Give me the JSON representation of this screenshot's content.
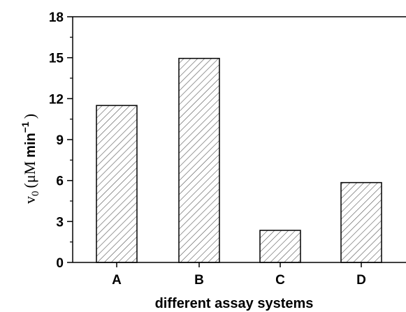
{
  "chart_data": {
    "type": "bar",
    "categories": [
      "A",
      "B",
      "C",
      "D"
    ],
    "values": [
      11.5,
      14.95,
      2.35,
      5.85
    ],
    "xlabel": "different assay systems",
    "ylabel": {
      "symbol": "v",
      "subscript": "0",
      "open_paren": "(",
      "unit_mu": "μM",
      "unit_min": "min",
      "superscript": "−1",
      "close_paren": ")"
    },
    "ylim": [
      0,
      18
    ],
    "yticks": [
      "0",
      "3",
      "6",
      "9",
      "12",
      "15",
      "18"
    ],
    "ytick_values": [
      0,
      3,
      6,
      9,
      12,
      15,
      18
    ],
    "grid": false,
    "bar_fill": "diagonal-hatch",
    "bar_color": "#555555",
    "axis_color": "#000000"
  }
}
